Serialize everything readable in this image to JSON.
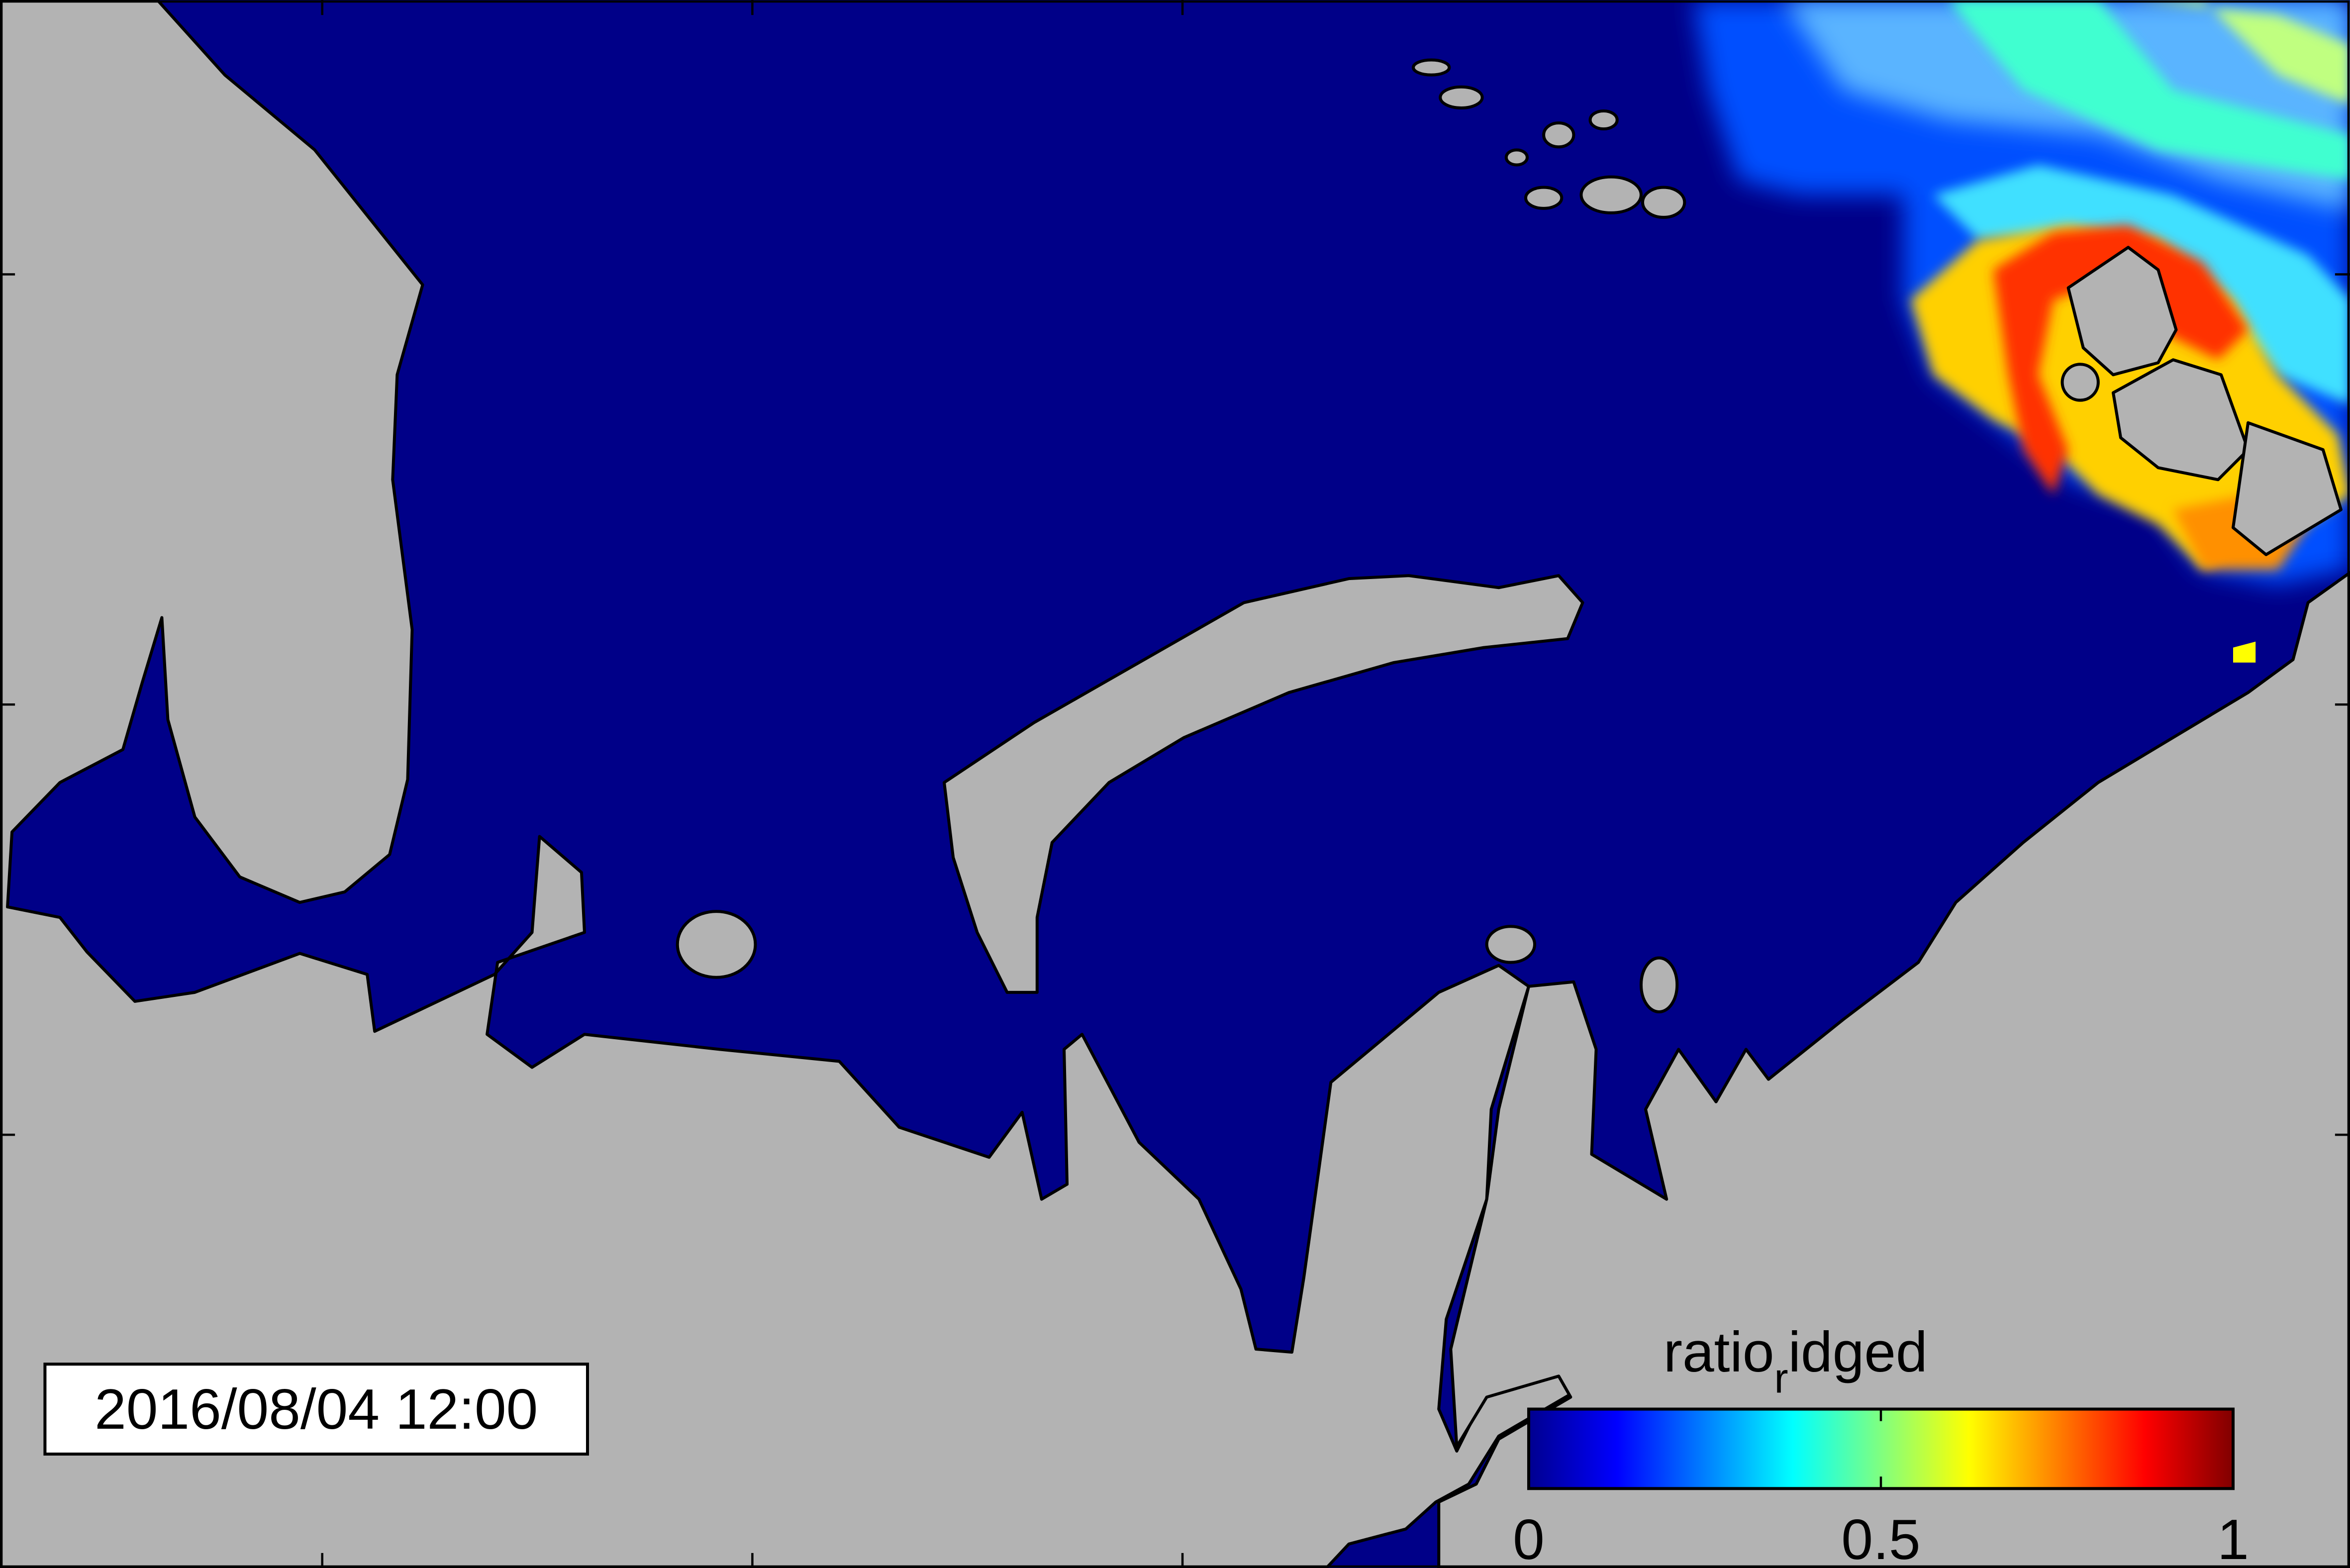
{
  "timestamp": "2016/08/04 12:00",
  "colorbar": {
    "label": {
      "base": "ratio",
      "subscript": "r",
      "rest": "idged"
    },
    "range": [
      0,
      1
    ],
    "ticks": [
      0,
      0.5,
      1
    ]
  }
}
